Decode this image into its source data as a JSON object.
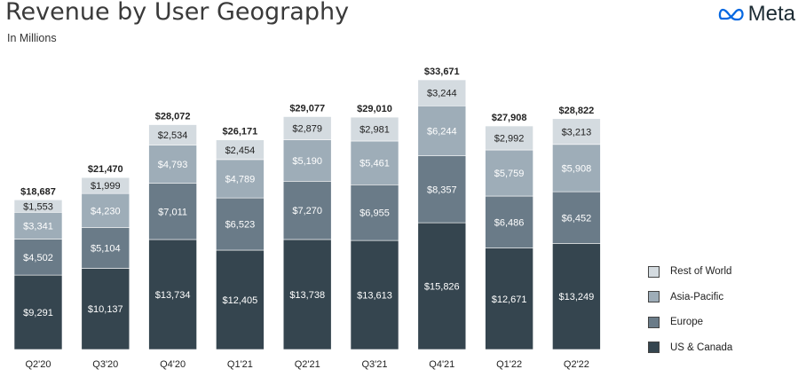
{
  "header": {
    "title": "Revenue by User Geography",
    "subtitle": "In Millions",
    "brand": "Meta"
  },
  "colors": {
    "us_canada": "#35454f",
    "europe": "#6a7b88",
    "asia_pacific": "#9eadb8",
    "rest_of_world": "#d4dbe0"
  },
  "chart_data": {
    "type": "bar",
    "stacked": true,
    "title": "Revenue by User Geography",
    "subtitle": "In Millions",
    "categories": [
      "Q2'20",
      "Q3'20",
      "Q4'20",
      "Q1'21",
      "Q2'21",
      "Q3'21",
      "Q4'21",
      "Q1'22",
      "Q2'22"
    ],
    "series": [
      {
        "name": "US & Canada",
        "key": "us_canada",
        "values": [
          9291,
          10137,
          13734,
          12405,
          13738,
          13613,
          15826,
          12671,
          13249
        ],
        "labels": [
          "$9,291",
          "$10,137",
          "$13,734",
          "$12,405",
          "$13,738",
          "$13,613",
          "$15,826",
          "$12,671",
          "$13,249"
        ]
      },
      {
        "name": "Europe",
        "key": "europe",
        "values": [
          4502,
          5104,
          7011,
          6523,
          7270,
          6955,
          8357,
          6486,
          6452
        ],
        "labels": [
          "$4,502",
          "$5,104",
          "$7,011",
          "$6,523",
          "$7,270",
          "$6,955",
          "$8,357",
          "$6,486",
          "$6,452"
        ]
      },
      {
        "name": "Asia-Pacific",
        "key": "asia_pacific",
        "values": [
          3341,
          4230,
          4793,
          4789,
          5190,
          5461,
          6244,
          5759,
          5908
        ],
        "labels": [
          "$3,341",
          "$4,230",
          "$4,793",
          "$4,789",
          "$5,190",
          "$5,461",
          "$6,244",
          "$5,759",
          "$5,908"
        ]
      },
      {
        "name": "Rest of World",
        "key": "rest_of_world",
        "values": [
          1553,
          1999,
          2534,
          2454,
          2879,
          2981,
          3244,
          2992,
          3213
        ],
        "labels": [
          "$1,553",
          "$1,999",
          "$2,534",
          "$2,454",
          "$2,879",
          "$2,981",
          "$3,244",
          "$2,992",
          "$3,213"
        ]
      }
    ],
    "totals": [
      18687,
      21470,
      28072,
      26171,
      29077,
      29010,
      33671,
      27908,
      28822
    ],
    "total_labels": [
      "$18,687",
      "$21,470",
      "$28,072",
      "$26,171",
      "$29,077",
      "$29,010",
      "$33,671",
      "$27,908",
      "$28,822"
    ],
    "legend": [
      "Rest of World",
      "Asia-Pacific",
      "Europe",
      "US & Canada"
    ],
    "legend_position": "right",
    "ylim": [
      0,
      33671
    ],
    "grid": false
  }
}
